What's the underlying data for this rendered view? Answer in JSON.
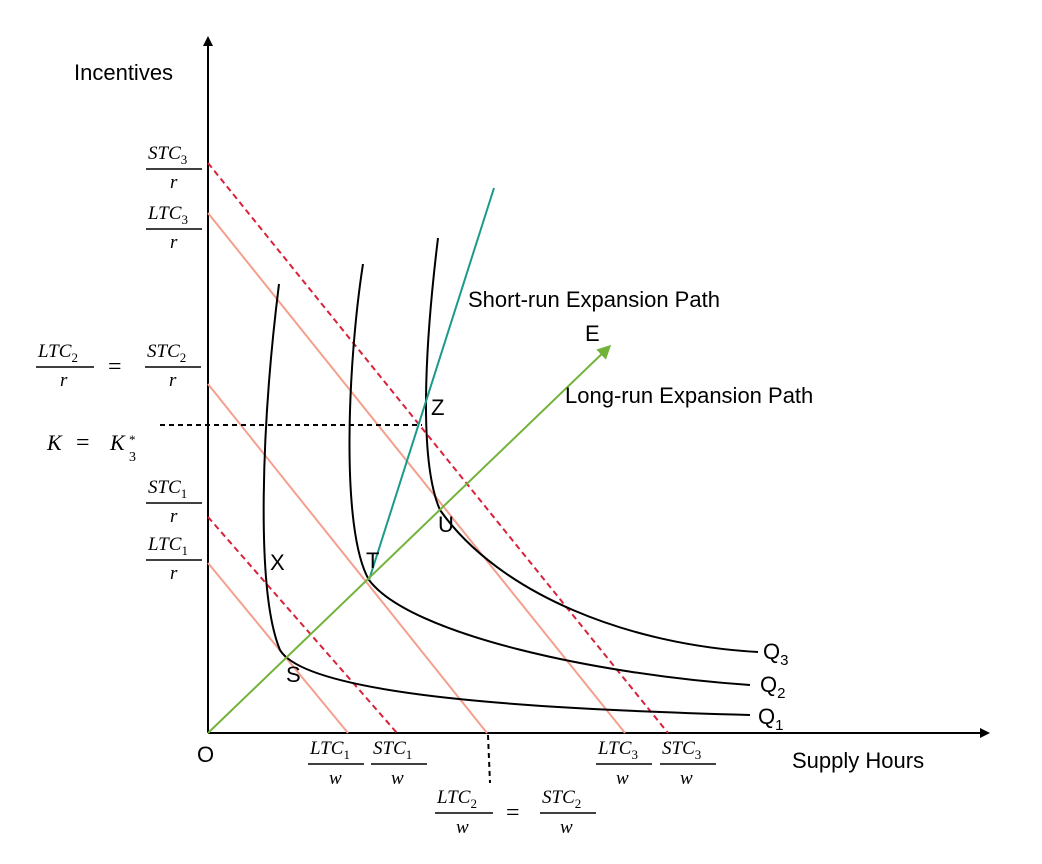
{
  "axes": {
    "y_label": "Incentives",
    "x_label": "Supply Hours",
    "origin_label": "O"
  },
  "curves": [
    {
      "label": "Q",
      "sub": "1"
    },
    {
      "label": "Q",
      "sub": "2"
    },
    {
      "label": "Q",
      "sub": "3"
    }
  ],
  "points": {
    "x": "X",
    "s": "S",
    "t": "T",
    "u": "U",
    "z": "Z",
    "e": "E"
  },
  "paths": {
    "short_run": "Short-run Expansion Path",
    "long_run": "Long-run Expansion Path"
  },
  "y_ticks": {
    "stc3": {
      "num": "STC",
      "sub": "3",
      "den": "r"
    },
    "ltc3": {
      "num": "LTC",
      "sub": "3",
      "den": "r"
    },
    "ltc2": {
      "num": "LTC",
      "sub": "2",
      "den": "r"
    },
    "eq": "=",
    "stc2": {
      "num": "STC",
      "sub": "2",
      "den": "r"
    },
    "k_left": "K",
    "k_eq": "=",
    "k_right": "K",
    "k_sub": "3",
    "k_sup": "*",
    "stc1": {
      "num": "STC",
      "sub": "1",
      "den": "r"
    },
    "ltc1": {
      "num": "LTC",
      "sub": "1",
      "den": "r"
    }
  },
  "x_ticks": {
    "ltc1": {
      "num": "LTC",
      "sub": "1",
      "den": "w"
    },
    "stc1": {
      "num": "STC",
      "sub": "1",
      "den": "w"
    },
    "ltc3": {
      "num": "LTC",
      "sub": "3",
      "den": "w"
    },
    "stc3": {
      "num": "STC",
      "sub": "3",
      "den": "w"
    },
    "ltc2": {
      "num": "LTC",
      "sub": "2",
      "den": "w"
    },
    "eq": "=",
    "stc2": {
      "num": "STC",
      "sub": "2",
      "den": "w"
    }
  },
  "colors": {
    "axis": "#000000",
    "isoquant": "#000000",
    "long_run_isocost": "#f4a08f",
    "short_run_isocost": "#d9213a",
    "long_run_path": "#72b33a",
    "short_run_path": "#1a9a8a",
    "guide": "#000000"
  }
}
